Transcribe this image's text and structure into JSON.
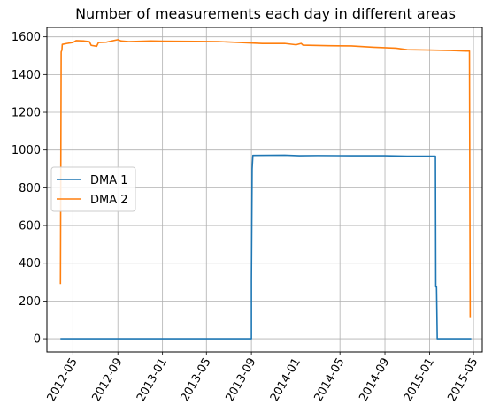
{
  "chart_data": {
    "type": "line",
    "title": "Number of measurements each day in different areas",
    "xlabel": "",
    "ylabel": "",
    "xlim": [
      "2012-02-20",
      "2015-05-25"
    ],
    "ylim": [
      -70,
      1650
    ],
    "grid": true,
    "legend_position": "center-left",
    "x_ticks": [
      "2012-05",
      "2012-09",
      "2013-01",
      "2013-05",
      "2013-09",
      "2014-01",
      "2014-05",
      "2014-09",
      "2015-01",
      "2015-05"
    ],
    "y_ticks": [
      0,
      200,
      400,
      600,
      800,
      1000,
      1200,
      1400,
      1600
    ],
    "series": [
      {
        "name": "DMA 1",
        "color": "#1f77b4",
        "points": [
          [
            "2012-03-28",
            0
          ],
          [
            "2013-08-28",
            0
          ],
          [
            "2013-09-01",
            0
          ],
          [
            "2013-09-01",
            310
          ],
          [
            "2013-09-03",
            900
          ],
          [
            "2013-09-05",
            972
          ],
          [
            "2013-12-01",
            973
          ],
          [
            "2014-01-10",
            970
          ],
          [
            "2014-03-01",
            971
          ],
          [
            "2014-06-01",
            970
          ],
          [
            "2014-09-01",
            970
          ],
          [
            "2014-11-01",
            968
          ],
          [
            "2014-12-01",
            968
          ],
          [
            "2015-01-17",
            968
          ],
          [
            "2015-01-18",
            275
          ],
          [
            "2015-01-20",
            275
          ],
          [
            "2015-01-22",
            0
          ],
          [
            "2015-04-25",
            0
          ]
        ]
      },
      {
        "name": "DMA 2",
        "color": "#ff7f0e",
        "points": [
          [
            "2012-03-28",
            290
          ],
          [
            "2012-03-30",
            1520
          ],
          [
            "2012-04-01",
            1530
          ],
          [
            "2012-04-02",
            1560
          ],
          [
            "2012-04-15",
            1565
          ],
          [
            "2012-05-01",
            1570
          ],
          [
            "2012-05-10",
            1580
          ],
          [
            "2012-06-01",
            1578
          ],
          [
            "2012-06-15",
            1575
          ],
          [
            "2012-06-20",
            1555
          ],
          [
            "2012-07-05",
            1550
          ],
          [
            "2012-07-10",
            1570
          ],
          [
            "2012-08-01",
            1572
          ],
          [
            "2012-08-15",
            1578
          ],
          [
            "2012-09-01",
            1585
          ],
          [
            "2012-09-10",
            1578
          ],
          [
            "2012-10-01",
            1575
          ],
          [
            "2012-12-01",
            1578
          ],
          [
            "2013-01-01",
            1577
          ],
          [
            "2013-04-01",
            1576
          ],
          [
            "2013-06-01",
            1575
          ],
          [
            "2013-08-01",
            1570
          ],
          [
            "2013-10-01",
            1565
          ],
          [
            "2013-12-01",
            1565
          ],
          [
            "2014-01-01",
            1558
          ],
          [
            "2014-01-15",
            1565
          ],
          [
            "2014-01-20",
            1556
          ],
          [
            "2014-04-01",
            1553
          ],
          [
            "2014-06-01",
            1552
          ],
          [
            "2014-08-01",
            1545
          ],
          [
            "2014-10-01",
            1540
          ],
          [
            "2014-11-01",
            1532
          ],
          [
            "2015-01-01",
            1530
          ],
          [
            "2015-03-01",
            1528
          ],
          [
            "2015-04-10",
            1525
          ],
          [
            "2015-04-20",
            1525
          ],
          [
            "2015-04-22",
            110
          ]
        ]
      }
    ]
  }
}
